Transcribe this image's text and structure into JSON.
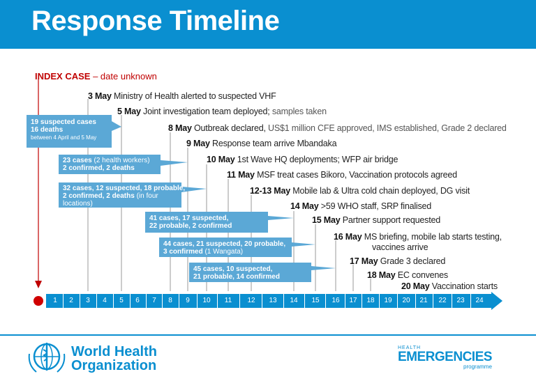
{
  "title": "Response Timeline",
  "index_case": {
    "label": "INDEX CASE",
    "rest": " – date unknown"
  },
  "events": [
    {
      "date": "3 May",
      "text": "Ministry of Health alerted to suspected VHF",
      "gray": ""
    },
    {
      "date": "5 May",
      "text": "Joint investigation team deployed; ",
      "gray": "samples taken"
    },
    {
      "date": "8 May",
      "text": "Outbreak declared, ",
      "gray": "US$1 million CFE approved, IMS established, Grade 2 declared"
    },
    {
      "date": "9 May",
      "text": "Response team arrive Mbandaka",
      "gray": ""
    },
    {
      "date": "10 May",
      "text": "1st Wave HQ deployments; WFP air bridge",
      "gray": ""
    },
    {
      "date": "11 May",
      "text": "MSF treat cases Bikoro, Vaccination protocols agreed",
      "gray": ""
    },
    {
      "date": "12-13 May",
      "text": "Mobile lab & Ultra cold chain deployed, DG visit",
      "gray": ""
    },
    {
      "date": "14 May",
      "text": ">59 WHO staff, SRP finalised",
      "gray": ""
    },
    {
      "date": "15 May",
      "text": "Partner support requested",
      "gray": ""
    },
    {
      "date": "16 May",
      "text": "MS briefing, mobile lab starts testing,",
      "gray": ""
    },
    {
      "date": "",
      "text": "vaccines arrive",
      "gray": ""
    },
    {
      "date": "17 May",
      "text": "Grade 3 declared",
      "gray": ""
    },
    {
      "date": "18 May",
      "text": "EC convenes",
      "gray": ""
    },
    {
      "date": "20 May",
      "text": "Vaccination starts",
      "gray": ""
    }
  ],
  "callouts": [
    {
      "l1": "19 suspected cases",
      "l2": "16 deaths",
      "l3": "between 4 April and 5 May"
    },
    {
      "l1": "23 cases",
      "l1n": " (2 health workers)",
      "l2": "2 confirmed, 2 deaths"
    },
    {
      "l1": "32 cases, 12 suspected, 18 probable,",
      "l2": "2 confirmed, 2 deaths",
      "l2n": " (in four",
      "l3": "locations)"
    },
    {
      "l1": "41 cases, 17 suspected,",
      "l2": "22 probable, 2 confirmed"
    },
    {
      "l1": "44 cases, 21 suspected, 20 probable,",
      "l2": "3 confirmed",
      "l2n": " (1 Wangata)"
    },
    {
      "l1": "45 cases, 10 suspected,",
      "l2": "21 probable, 14 confirmed"
    }
  ],
  "axis_ticks": [
    "1",
    "2",
    "3",
    "4",
    "5",
    "6",
    "7",
    "8",
    "9",
    "10",
    "11",
    "12",
    "13",
    "14",
    "15",
    "16",
    "17",
    "18",
    "19",
    "20",
    "21",
    "22",
    "23",
    "24"
  ],
  "footer": {
    "who_line1": "World Health",
    "who_line2": "Organization",
    "he_line1": "HEALTH",
    "he_line2": "EMERGENCIES",
    "he_line3": "programme"
  },
  "colors": {
    "accent": "#0a8fd0",
    "callout": "#5ba8d6",
    "index": "#c00000"
  }
}
